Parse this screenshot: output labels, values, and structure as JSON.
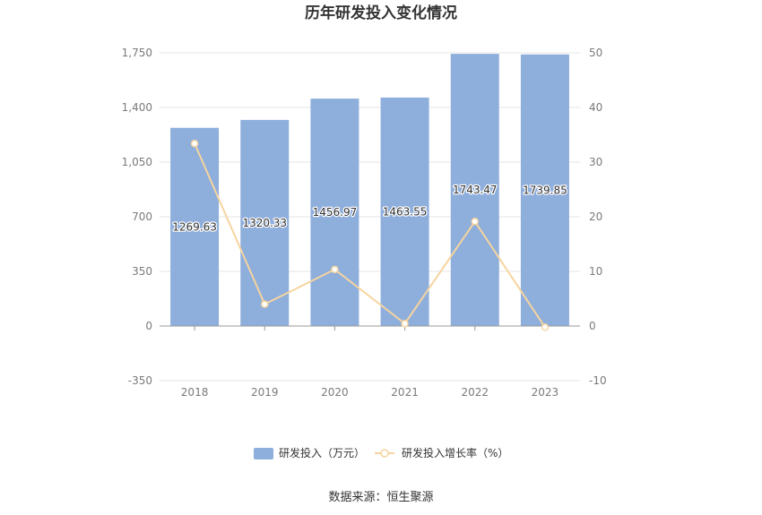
{
  "chart_data": {
    "type": "bar",
    "title": "历年研发投入变化情况",
    "categories": [
      "2018",
      "2019",
      "2020",
      "2021",
      "2022",
      "2023"
    ],
    "series": [
      {
        "name": "研发投入（万元）",
        "type": "bar",
        "axis": "left",
        "color": "#8eaedc",
        "values": [
          1269.63,
          1320.33,
          1456.97,
          1463.55,
          1743.47,
          1739.85
        ],
        "data_labels": true
      },
      {
        "name": "研发投入增长率（%）",
        "type": "line",
        "axis": "right",
        "color": "#f6d49f",
        "values": [
          33.4,
          3.99,
          10.35,
          0.45,
          19.13,
          -0.21
        ],
        "data_labels": false
      }
    ],
    "y_left": {
      "ylim": [
        -350,
        1750
      ],
      "ticks": [
        -350,
        0,
        350,
        700,
        1050,
        1400,
        1750
      ],
      "tick_labels": [
        "-350",
        "0",
        "350",
        "700",
        "1,050",
        "1,400",
        "1,750"
      ]
    },
    "y_right": {
      "ylim": [
        -10,
        50
      ],
      "ticks": [
        -10,
        0,
        10,
        20,
        30,
        40,
        50
      ],
      "tick_labels": [
        "-10",
        "0",
        "10",
        "20",
        "30",
        "40",
        "50"
      ]
    },
    "grid": true,
    "legend": "bottom-center",
    "colors": {
      "grid": "#e6e6e6",
      "axis": "#999999"
    }
  },
  "source": "数据来源：恒生聚源"
}
